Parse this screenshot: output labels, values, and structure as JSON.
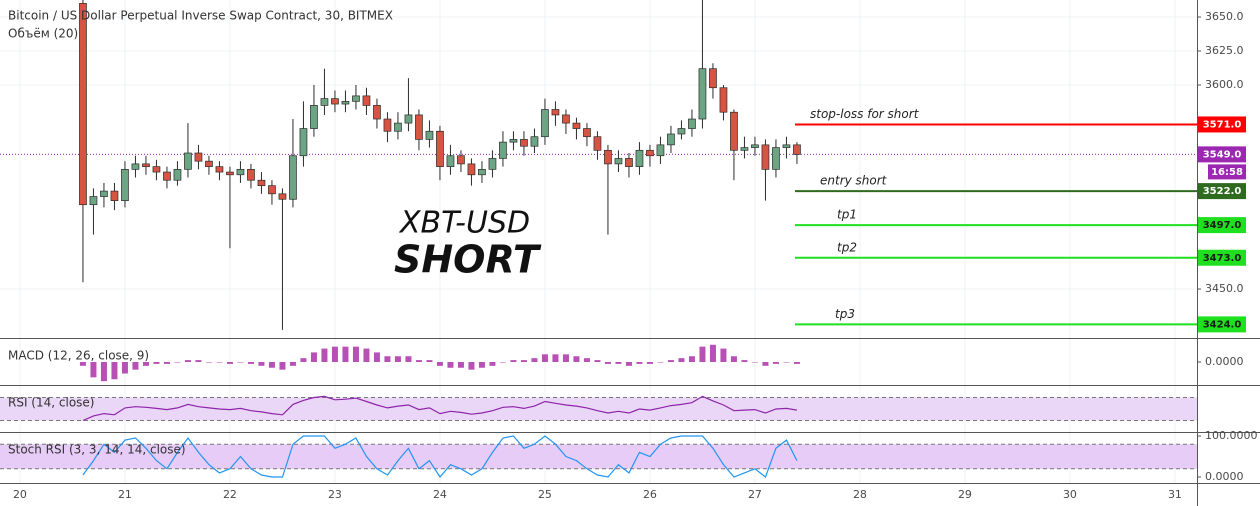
{
  "chart_data": [
    {
      "type": "candlestick",
      "title": "Bitcoin / US Dollar Perpetual Inverse Swap Contract, 30, BITMEX",
      "subtitle": "Объём (20)",
      "annotation_symbol": "XBT-USD",
      "annotation_signal": "SHORT",
      "up_color": "#6ba583",
      "down_color": "#d75442",
      "grid": true,
      "x": [
        20.6,
        20.7,
        20.8,
        20.9,
        21.0,
        21.1,
        21.2,
        21.3,
        21.4,
        21.5,
        21.6,
        21.7,
        21.8,
        21.9,
        22.0,
        22.1,
        22.2,
        22.3,
        22.4,
        22.5,
        22.6,
        22.7,
        22.8,
        22.9,
        23.0,
        23.1,
        23.2,
        23.3,
        23.4,
        23.5,
        23.6,
        23.7,
        23.8,
        23.9,
        24.0,
        24.1,
        24.2,
        24.3,
        24.4,
        24.5,
        24.6,
        24.7,
        24.8,
        24.9,
        25.0,
        25.1,
        25.2,
        25.3,
        25.4,
        25.5,
        25.6,
        25.7,
        25.8,
        25.9,
        26.0,
        26.1,
        26.2,
        26.3,
        26.4,
        26.5,
        26.6,
        26.7,
        26.8,
        26.9,
        27.0,
        27.1,
        27.2,
        27.3,
        27.4
      ],
      "open": [
        3660,
        3512,
        3518,
        3522,
        3515,
        3538,
        3542,
        3540,
        3536,
        3530,
        3538,
        3550,
        3544,
        3540,
        3536,
        3534,
        3538,
        3530,
        3526,
        3520,
        3516,
        3548,
        3568,
        3585,
        3590,
        3586,
        3588,
        3592,
        3585,
        3575,
        3566,
        3572,
        3578,
        3560,
        3566,
        3540,
        3548,
        3542,
        3534,
        3538,
        3546,
        3558,
        3560,
        3555,
        3562,
        3582,
        3578,
        3572,
        3568,
        3562,
        3552,
        3542,
        3546,
        3540,
        3552,
        3548,
        3556,
        3564,
        3568,
        3575,
        3612,
        3598,
        3580,
        3552,
        3554,
        3556,
        3538,
        3554,
        3556
      ],
      "high": [
        3668,
        3524,
        3528,
        3528,
        3544,
        3548,
        3548,
        3545,
        3540,
        3544,
        3572,
        3556,
        3548,
        3544,
        3540,
        3544,
        3542,
        3536,
        3530,
        3524,
        3575,
        3588,
        3600,
        3612,
        3596,
        3596,
        3600,
        3598,
        3590,
        3580,
        3580,
        3605,
        3582,
        3574,
        3570,
        3556,
        3552,
        3546,
        3544,
        3552,
        3566,
        3566,
        3566,
        3568,
        3590,
        3588,
        3582,
        3576,
        3572,
        3566,
        3556,
        3552,
        3550,
        3558,
        3556,
        3562,
        3570,
        3574,
        3582,
        3668,
        3616,
        3600,
        3582,
        3562,
        3562,
        3560,
        3560,
        3562,
        3558
      ],
      "low": [
        3455,
        3490,
        3510,
        3508,
        3510,
        3532,
        3534,
        3530,
        3524,
        3526,
        3532,
        3538,
        3534,
        3530,
        3480,
        3528,
        3524,
        3520,
        3512,
        3420,
        3510,
        3540,
        3562,
        3578,
        3580,
        3580,
        3582,
        3578,
        3568,
        3558,
        3560,
        3566,
        3552,
        3554,
        3530,
        3534,
        3536,
        3526,
        3528,
        3532,
        3540,
        3552,
        3548,
        3550,
        3556,
        3570,
        3564,
        3560,
        3555,
        3545,
        3490,
        3536,
        3532,
        3534,
        3540,
        3542,
        3550,
        3560,
        3562,
        3568,
        3590,
        3574,
        3530,
        3546,
        3548,
        3515,
        3532,
        3546,
        3542
      ],
      "close": [
        3512,
        3518,
        3522,
        3515,
        3538,
        3542,
        3540,
        3536,
        3530,
        3538,
        3550,
        3544,
        3540,
        3536,
        3534,
        3538,
        3530,
        3526,
        3520,
        3516,
        3548,
        3568,
        3585,
        3590,
        3586,
        3588,
        3592,
        3585,
        3575,
        3566,
        3572,
        3578,
        3560,
        3566,
        3540,
        3548,
        3542,
        3534,
        3538,
        3546,
        3558,
        3560,
        3555,
        3562,
        3582,
        3578,
        3572,
        3568,
        3562,
        3552,
        3542,
        3546,
        3540,
        3552,
        3548,
        3556,
        3564,
        3568,
        3575,
        3612,
        3598,
        3580,
        3552,
        3554,
        3556,
        3538,
        3554,
        3556,
        3549
      ],
      "xlim": [
        19.81,
        31.21
      ],
      "xticks": [
        20,
        21,
        22,
        23,
        24,
        25,
        26,
        27,
        28,
        29,
        30,
        31
      ],
      "ylim": [
        3414,
        3662.5
      ],
      "yticks": [
        {
          "value": 3450,
          "label": "3450.0"
        },
        {
          "value": 3600,
          "label": "3600.0"
        },
        {
          "value": 3625,
          "label": "3625.0"
        },
        {
          "value": 3650,
          "label": "3650.0"
        }
      ],
      "last_price": {
        "value": 3549,
        "value_label": "3549.0",
        "countdown": "16:58",
        "color": "#9c27b0"
      },
      "levels": [
        {
          "text": "stop-loss for short",
          "value": 3571,
          "value_label": "3571.0",
          "color": "#ff0000",
          "label_color": "#ffffff"
        },
        {
          "text": "entry short",
          "value": 3522,
          "value_label": "3522.0",
          "color": "#2e6b1f",
          "label_color": "#ffffff"
        },
        {
          "text": "tp1",
          "value": 3497,
          "value_label": "3497.0",
          "color": "#1fe01f",
          "label_color": "#1a1a1a"
        },
        {
          "text": "tp2",
          "value": 3473,
          "value_label": "3473.0",
          "color": "#1fe01f",
          "label_color": "#1a1a1a"
        },
        {
          "text": "tp3",
          "value": 3424,
          "value_label": "3424.0",
          "color": "#1fe01f",
          "label_color": "#1a1a1a"
        }
      ]
    },
    {
      "type": "bar",
      "title": "MACD (12, 26, close, 9)",
      "color": "#a626a4",
      "values": [
        -2,
        -8,
        -10,
        -9,
        -6,
        -4,
        -2,
        -1,
        -1,
        0,
        1,
        1,
        0,
        0,
        -1,
        0,
        -1,
        -2,
        -3,
        -4,
        -2,
        2,
        5,
        7,
        8,
        8,
        8,
        7,
        5,
        3,
        3,
        3,
        1,
        1,
        -2,
        -3,
        -3,
        -4,
        -3,
        -2,
        0,
        1,
        1,
        2,
        4,
        4,
        4,
        3,
        2,
        1,
        -1,
        -1,
        -2,
        -1,
        -1,
        0,
        1,
        2,
        3,
        8,
        9,
        7,
        3,
        1,
        0,
        -2,
        -1,
        0,
        -1
      ],
      "ylim": [
        -12,
        12
      ],
      "yticks": [
        {
          "value": 0,
          "label": "0.0000"
        }
      ]
    },
    {
      "type": "line",
      "title": "RSI (14, close)",
      "color": "#8e24aa",
      "band": [
        30,
        70
      ],
      "band_color": "#ead6f7",
      "values": [
        30,
        38,
        42,
        40,
        52,
        54,
        53,
        51,
        49,
        52,
        58,
        54,
        52,
        50,
        49,
        51,
        47,
        45,
        42,
        40,
        58,
        65,
        70,
        72,
        66,
        67,
        69,
        63,
        57,
        52,
        55,
        57,
        49,
        52,
        42,
        46,
        44,
        41,
        43,
        47,
        53,
        54,
        51,
        55,
        63,
        60,
        57,
        55,
        52,
        47,
        43,
        46,
        43,
        50,
        48,
        52,
        56,
        58,
        61,
        72,
        64,
        57,
        47,
        48,
        49,
        43,
        50,
        51,
        48
      ],
      "ylim": [
        10,
        90
      ],
      "yticks": []
    },
    {
      "type": "line",
      "title": "Stoch RSI (3, 3, 14, 14, close)",
      "color": "#2196f3",
      "band": [
        20,
        80
      ],
      "band_color": "#e6ccf7",
      "values": [
        5,
        40,
        80,
        60,
        90,
        95,
        70,
        40,
        20,
        60,
        95,
        60,
        30,
        10,
        20,
        50,
        20,
        5,
        0,
        0,
        80,
        100,
        100,
        100,
        70,
        80,
        95,
        50,
        20,
        5,
        40,
        70,
        20,
        40,
        0,
        30,
        20,
        5,
        20,
        60,
        95,
        100,
        70,
        80,
        100,
        80,
        50,
        40,
        20,
        5,
        0,
        30,
        10,
        60,
        50,
        80,
        95,
        100,
        100,
        100,
        70,
        30,
        0,
        10,
        20,
        0,
        70,
        90,
        40
      ],
      "ylim": [
        -14.6,
        107.3
      ],
      "yticks": [
        {
          "value": 0,
          "label": "0.0000"
        },
        {
          "value": 100,
          "label": "100.0000"
        }
      ]
    }
  ]
}
